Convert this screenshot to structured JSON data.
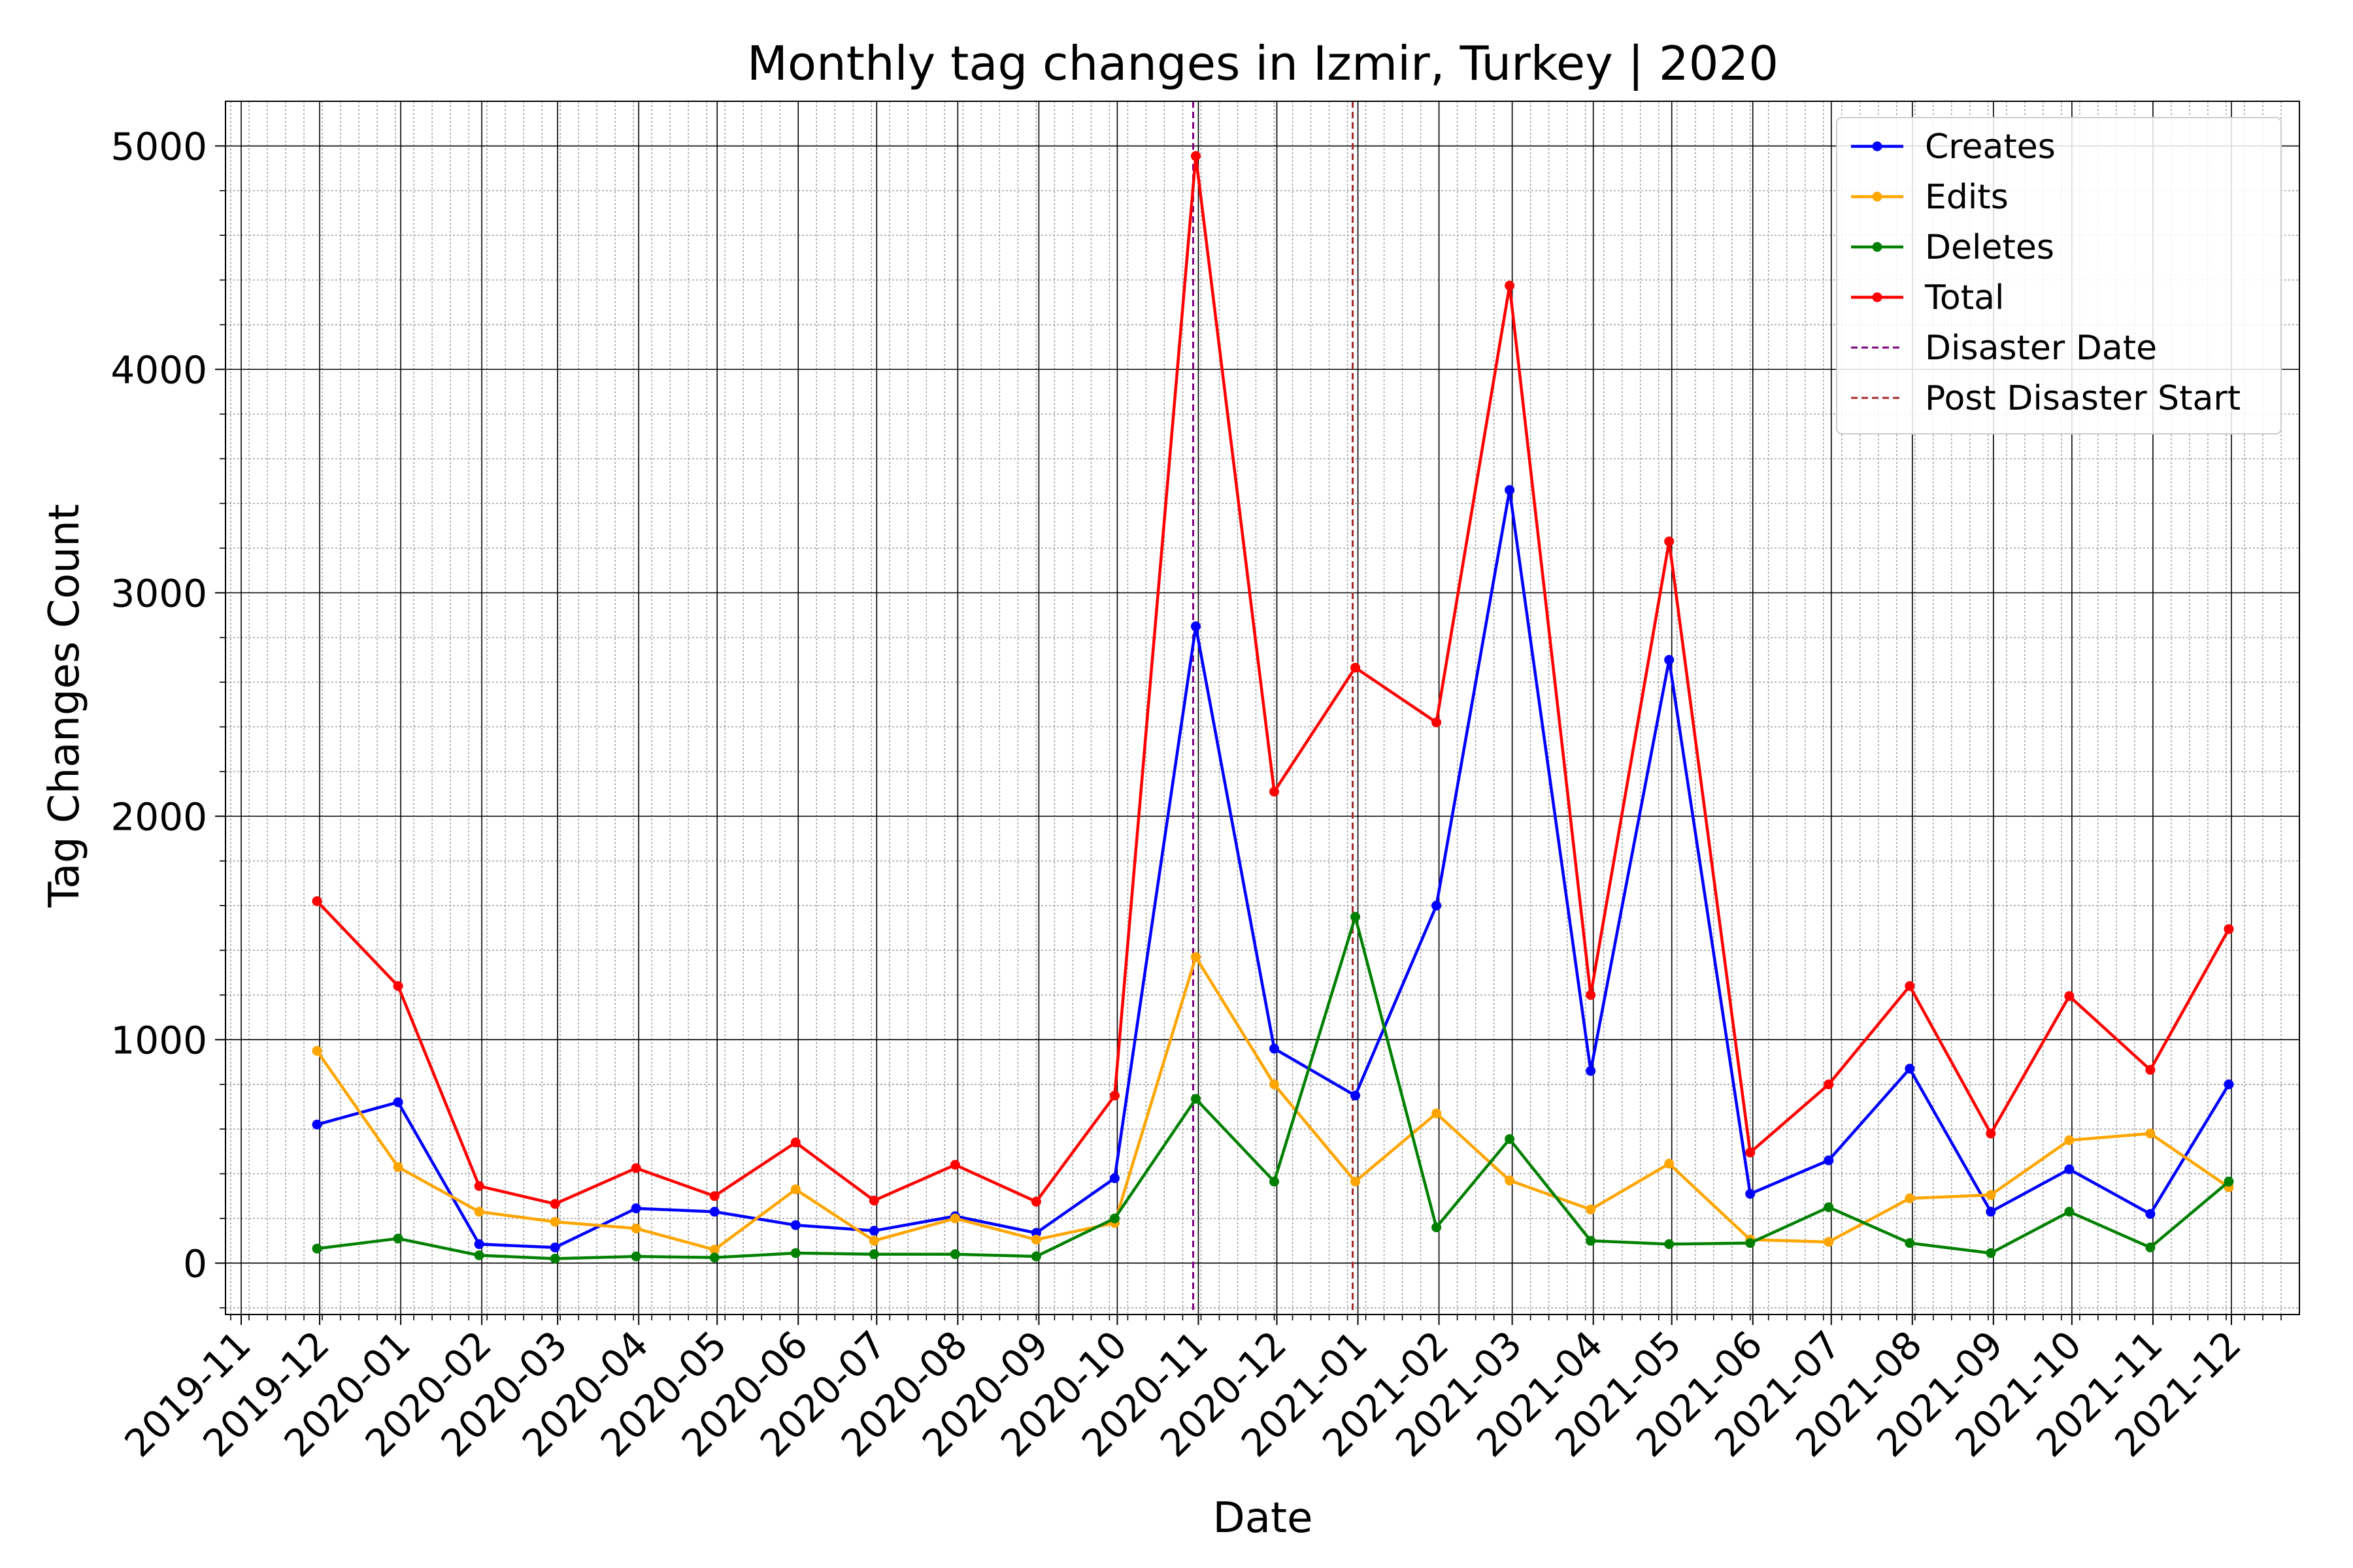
{
  "chart_data": {
    "type": "line",
    "title": "Monthly tag changes in Izmir, Turkey | 2020",
    "xlabel": "Date",
    "ylabel": "Tag Changes Count",
    "x_ticks": [
      "2019-11",
      "2019-12",
      "2020-01",
      "2020-02",
      "2020-03",
      "2020-04",
      "2020-05",
      "2020-06",
      "2020-07",
      "2020-08",
      "2020-09",
      "2020-10",
      "2020-11",
      "2020-12",
      "2021-01",
      "2021-02",
      "2021-03",
      "2021-04",
      "2021-05",
      "2021-06",
      "2021-07",
      "2021-08",
      "2021-09",
      "2021-10",
      "2021-11",
      "2021-12"
    ],
    "y_ticks": [
      0,
      1000,
      2000,
      3000,
      4000,
      5000
    ],
    "ylim": [
      -230,
      5200
    ],
    "xlim": [
      "2019-10-26",
      "2021-12-27"
    ],
    "grid": true,
    "legend_position": "top-right",
    "x": [
      "2019-11-30",
      "2019-12-31",
      "2020-01-31",
      "2020-02-29",
      "2020-03-31",
      "2020-04-30",
      "2020-05-31",
      "2020-06-30",
      "2020-07-31",
      "2020-08-31",
      "2020-09-30",
      "2020-10-31",
      "2020-11-30",
      "2020-12-31",
      "2021-01-31",
      "2021-02-28",
      "2021-03-31",
      "2021-04-30",
      "2021-05-31",
      "2021-06-30",
      "2021-07-31",
      "2021-08-31",
      "2021-09-30",
      "2021-10-31",
      "2021-11-30"
    ],
    "series": [
      {
        "name": "Creates",
        "color": "#0000ff",
        "values": [
          620,
          720,
          85,
          70,
          245,
          230,
          170,
          145,
          210,
          135,
          380,
          2850,
          960,
          750,
          1600,
          3460,
          860,
          2700,
          310,
          460,
          870,
          230,
          420,
          220,
          800
        ]
      },
      {
        "name": "Edits",
        "color": "#ffa500",
        "values": [
          950,
          430,
          230,
          185,
          155,
          60,
          330,
          100,
          200,
          105,
          180,
          1370,
          800,
          365,
          670,
          370,
          240,
          445,
          105,
          95,
          290,
          305,
          550,
          580,
          340
        ]
      },
      {
        "name": "Deletes",
        "color": "#008000",
        "values": [
          65,
          110,
          35,
          20,
          30,
          25,
          45,
          40,
          40,
          30,
          200,
          735,
          365,
          1550,
          160,
          555,
          100,
          85,
          90,
          250,
          90,
          45,
          230,
          70,
          365
        ]
      },
      {
        "name": "Total",
        "color": "#ff0000",
        "values": [
          1620,
          1240,
          345,
          265,
          425,
          300,
          540,
          280,
          440,
          275,
          750,
          4955,
          2110,
          2665,
          2420,
          4375,
          1200,
          3230,
          495,
          800,
          1240,
          580,
          1195,
          865,
          1495
        ]
      }
    ],
    "vlines": [
      {
        "name": "Disaster Date",
        "x": "2020-10-30",
        "color": "#800080"
      },
      {
        "name": "Post Disaster Start",
        "x": "2020-12-30",
        "color": "#a52a2a"
      }
    ]
  }
}
